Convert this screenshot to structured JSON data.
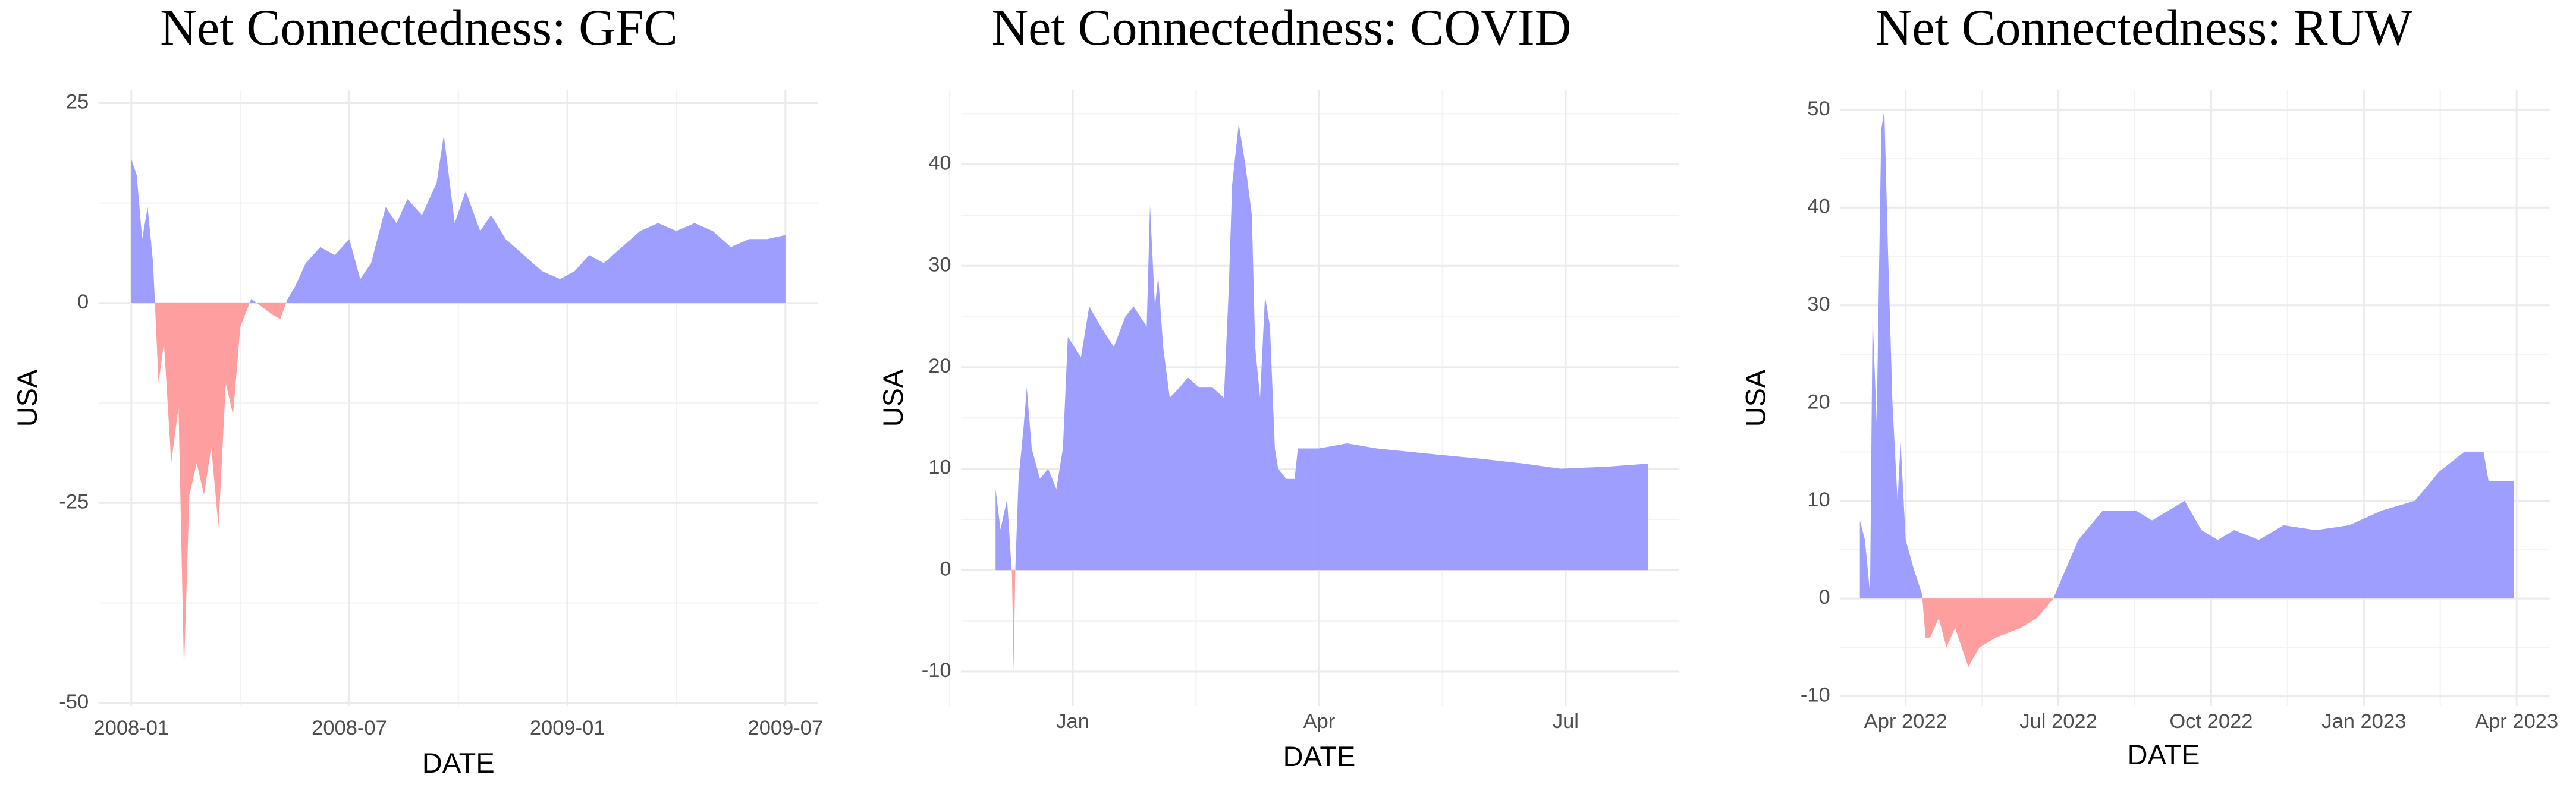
{
  "chart_data": [
    {
      "type": "area",
      "title": "Net Connectedness: GFC",
      "x_label": "DATE",
      "y_label": "USA",
      "x": [
        0,
        0.15,
        0.3,
        0.45,
        0.6,
        0.75,
        0.9,
        1.1,
        1.3,
        1.45,
        1.6,
        1.8,
        2.0,
        2.2,
        2.4,
        2.6,
        2.8,
        3.0,
        3.3,
        3.6,
        3.9,
        4.1,
        4.3,
        4.5,
        4.8,
        5.2,
        5.6,
        6.0,
        6.3,
        6.6,
        7.0,
        7.3,
        7.6,
        8.0,
        8.4,
        8.6,
        8.9,
        9.2,
        9.6,
        9.9,
        10.3,
        10.8,
        11.3,
        11.8,
        12.2,
        12.6,
        13.0,
        13.5,
        14.0,
        14.5,
        15.0,
        15.5,
        16.0,
        16.5,
        17.0,
        17.5,
        18.0
      ],
      "values": [
        18,
        16,
        8,
        12,
        5,
        -10,
        -5,
        -20,
        -13,
        -46,
        -24,
        -20,
        -24,
        -18,
        -28,
        -10,
        -14,
        -3,
        0.5,
        -0.5,
        -1.5,
        -2,
        0.5,
        2,
        5,
        7,
        6,
        8,
        3,
        5,
        12,
        10,
        13,
        11,
        15,
        21,
        10,
        14,
        9,
        11,
        8,
        6,
        4,
        3,
        4,
        6,
        5,
        7,
        9,
        10,
        9,
        10,
        9,
        7,
        8,
        8,
        8.5
      ],
      "positive_color": "#9999ff",
      "negative_color": "#ff9999",
      "xlim": [
        -0.9,
        18.9
      ],
      "ylim": [
        -50.4,
        26.6
      ],
      "xticks": [
        {
          "value": 0,
          "label": "2008-01"
        },
        {
          "value": 6,
          "label": "2008-07"
        },
        {
          "value": 12,
          "label": "2009-01"
        },
        {
          "value": 18,
          "label": "2009-07"
        }
      ],
      "yticks": [
        -50,
        -25,
        0,
        25
      ],
      "x_minor_grid": [
        3,
        9,
        15
      ],
      "y_minor_grid": [
        -37.5,
        -12.5,
        12.5
      ],
      "grid": true
    },
    {
      "type": "area",
      "title": "Net Connectedness: COVID",
      "x_label": "DATE",
      "y_label": "USA",
      "x": [
        -0.94,
        -0.88,
        -0.8,
        -0.74,
        -0.72,
        -0.7,
        -0.66,
        -0.6,
        -0.56,
        -0.5,
        -0.4,
        -0.3,
        -0.2,
        -0.12,
        -0.06,
        0.1,
        0.2,
        0.34,
        0.5,
        0.64,
        0.74,
        0.9,
        0.94,
        1.0,
        1.04,
        1.1,
        1.18,
        1.3,
        1.4,
        1.54,
        1.7,
        1.84,
        1.9,
        1.94,
        2.02,
        2.1,
        2.18,
        2.22,
        2.28,
        2.34,
        2.4,
        2.46,
        2.5,
        2.6,
        2.7,
        2.74,
        3.0,
        3.34,
        3.7,
        4.3,
        4.94,
        5.5,
        5.94,
        6.5,
        7.0
      ],
      "values": [
        8,
        4,
        7,
        -0.5,
        -10,
        0,
        9,
        14,
        18,
        12,
        9,
        10,
        8,
        12,
        23,
        21,
        26,
        24,
        22,
        25,
        26,
        24,
        36,
        26,
        29,
        22,
        17,
        18,
        19,
        18,
        18,
        17,
        28,
        38,
        44,
        40,
        35,
        22,
        17,
        27,
        24,
        12,
        10,
        9,
        9,
        12,
        12,
        12.5,
        12,
        11.5,
        11,
        10.5,
        10,
        10.2,
        10.5
      ],
      "positive_color": "#9999ff",
      "negative_color": "#ff9999",
      "xlim": [
        -1.36,
        7.38
      ],
      "ylim": [
        -13.4,
        47.3
      ],
      "xticks": [
        {
          "value": 0,
          "label": "Jan"
        },
        {
          "value": 3,
          "label": "Apr"
        },
        {
          "value": 6,
          "label": "Jul"
        }
      ],
      "yticks": [
        -10,
        0,
        10,
        20,
        30,
        40
      ],
      "x_minor_grid": [
        -1.5,
        1.5,
        4.5
      ],
      "y_minor_grid": [
        -5,
        5,
        15,
        25,
        35,
        45
      ],
      "grid": true
    },
    {
      "type": "area",
      "title": "Net Connectedness: RUW",
      "x_label": "DATE",
      "y_label": "USA",
      "x": [
        -0.9,
        -0.8,
        -0.7,
        -0.65,
        -0.57,
        -0.48,
        -0.42,
        -0.35,
        -0.26,
        -0.16,
        -0.1,
        0,
        0.16,
        0.32,
        0.39,
        0.48,
        0.65,
        0.8,
        0.97,
        1.23,
        1.45,
        1.77,
        2.26,
        2.58,
        2.74,
        2.9,
        3.06,
        3.39,
        3.87,
        4.52,
        4.84,
        5.48,
        5.81,
        6.13,
        6.45,
        6.94,
        7.42,
        8.06,
        8.71,
        9.35,
        10.0,
        10.48,
        10.97,
        11.35,
        11.45,
        11.94
      ],
      "values": [
        8,
        6,
        0.5,
        29,
        18,
        48,
        50,
        36,
        20,
        10,
        16,
        6,
        3,
        0.5,
        -4,
        -4,
        -2,
        -5,
        -3,
        -7,
        -5,
        -4,
        -3,
        -2,
        -1,
        0,
        2,
        6,
        9,
        9,
        8,
        10,
        7,
        6,
        7,
        6,
        7.5,
        7,
        7.5,
        9,
        10,
        13,
        15,
        15,
        12,
        12
      ],
      "positive_color": "#9999ff",
      "negative_color": "#ff9999",
      "xlim": [
        -1.29,
        12.65
      ],
      "ylim": [
        -11.0,
        52.0
      ],
      "xticks": [
        {
          "value": 0,
          "label": "Apr 2022"
        },
        {
          "value": 3,
          "label": "Jul 2022"
        },
        {
          "value": 6,
          "label": "Oct 2022"
        },
        {
          "value": 9,
          "label": "Jan 2023"
        },
        {
          "value": 12,
          "label": "Apr 2023"
        }
      ],
      "yticks": [
        -10,
        0,
        10,
        20,
        30,
        40,
        50
      ],
      "x_minor_grid": [
        1.5,
        4.5,
        7.5,
        10.5
      ],
      "y_minor_grid": [
        -5,
        5,
        15,
        25,
        35,
        45
      ],
      "grid": true
    }
  ]
}
